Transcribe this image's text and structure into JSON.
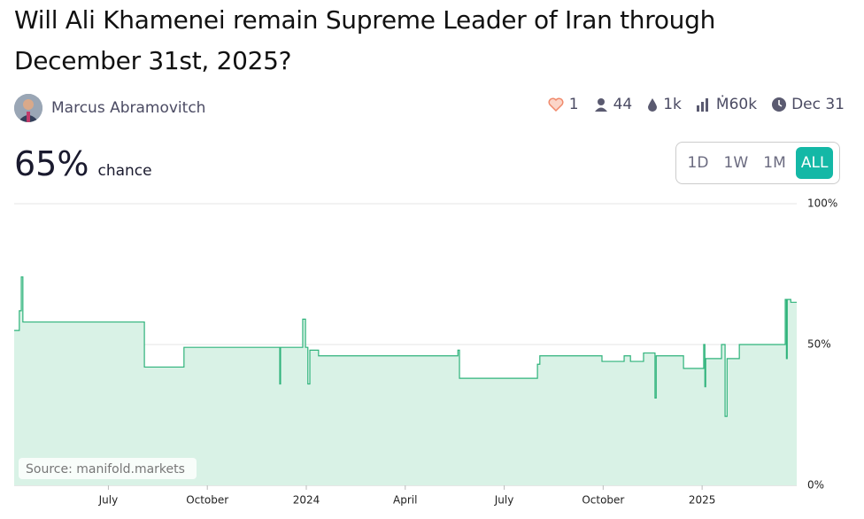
{
  "header": {
    "title": "Will Ali Khamenei remain Supreme Leader of Iran through December 31st, 2025?",
    "author": "Marcus Abramovitch",
    "stats": {
      "likes": "1",
      "traders": "44",
      "liquidity": "1k",
      "volume": "Ṁ60k",
      "close": "Dec 31"
    }
  },
  "probability": {
    "value": "65%",
    "label": "chance"
  },
  "time_buttons": [
    "1D",
    "1W",
    "1M",
    "ALL"
  ],
  "chart_data": {
    "type": "line",
    "source": "Source: manifold.markets",
    "color": "#2fb37b",
    "fill": "#d9f2e6",
    "xlim": [
      2023.262,
      2025.239
    ],
    "xticks": [
      {
        "value": 2023.5,
        "label": "July"
      },
      {
        "value": 2023.75,
        "label": "October"
      },
      2024,
      {
        "value": 2024.25,
        "label": "April"
      },
      {
        "value": 2024.5,
        "label": "July"
      },
      {
        "value": 2024.75,
        "label": "October"
      },
      2025
    ],
    "ylim": [
      0,
      100
    ],
    "yticks": [
      {
        "value": 0,
        "label": "0%"
      },
      {
        "value": 50,
        "label": "50%"
      },
      {
        "value": 100,
        "label": "100%"
      }
    ],
    "x": [
      2023.262,
      2023.275,
      2023.28,
      2023.284,
      2023.591,
      2023.691,
      2023.933,
      2023.935,
      2023.991,
      2023.998,
      2024.004,
      2024.009,
      2024.031,
      2024.383,
      2024.387,
      2024.584,
      2024.59,
      2024.747,
      2024.803,
      2024.819,
      2024.852,
      2024.881,
      2024.884,
      2024.953,
      2025.004,
      2025.007,
      2025.009,
      2025.049,
      2025.058,
      2025.063,
      2025.094,
      2025.21,
      2025.213,
      2025.215,
      2025.224,
      2025.239
    ],
    "values": [
      55,
      62,
      74,
      58,
      42,
      49,
      36,
      49,
      59,
      49,
      36,
      48,
      46,
      48,
      38,
      43,
      46,
      44,
      46,
      44,
      47,
      31,
      46,
      41.5,
      50,
      35,
      45,
      50,
      24.5,
      45,
      50,
      66,
      45,
      66,
      65,
      65
    ]
  }
}
